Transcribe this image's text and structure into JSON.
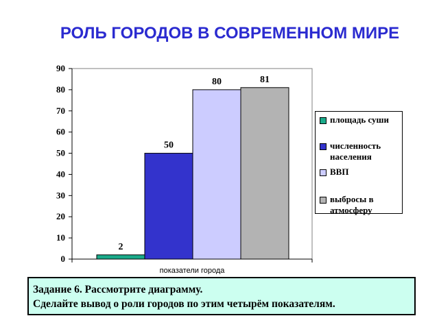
{
  "title": "РОЛЬ ГОРОДОВ В СОВРЕМЕННОМ МИРЕ",
  "chart_data": {
    "type": "bar",
    "title": "РОЛЬ ГОРОДОВ В СОВРЕМЕННОМ МИРЕ",
    "categories": [
      "показатели города"
    ],
    "xlabel": "показатели города",
    "ylabel": "",
    "ylim": [
      0,
      90
    ],
    "yticks": [
      0,
      10,
      20,
      30,
      40,
      50,
      60,
      70,
      80,
      90
    ],
    "grid": false,
    "legend_position": "right",
    "series": [
      {
        "name": "площадь суши",
        "values": [
          2
        ],
        "color": "#1aaa8a"
      },
      {
        "name": "численность населения",
        "values": [
          50
        ],
        "color": "#3333cc"
      },
      {
        "name": "ВВП",
        "values": [
          80
        ],
        "color": "#ccccff"
      },
      {
        "name": "выбросы в атмосферу",
        "values": [
          81
        ],
        "color": "#b3b3b3"
      }
    ],
    "data_labels": [
      "2",
      "50",
      "80",
      "81"
    ]
  },
  "task": {
    "line1": "Задание 6.  Рассмотрите диаграмму.",
    "line2": "Сделайте вывод о роли городов по этим четырём показателям."
  }
}
